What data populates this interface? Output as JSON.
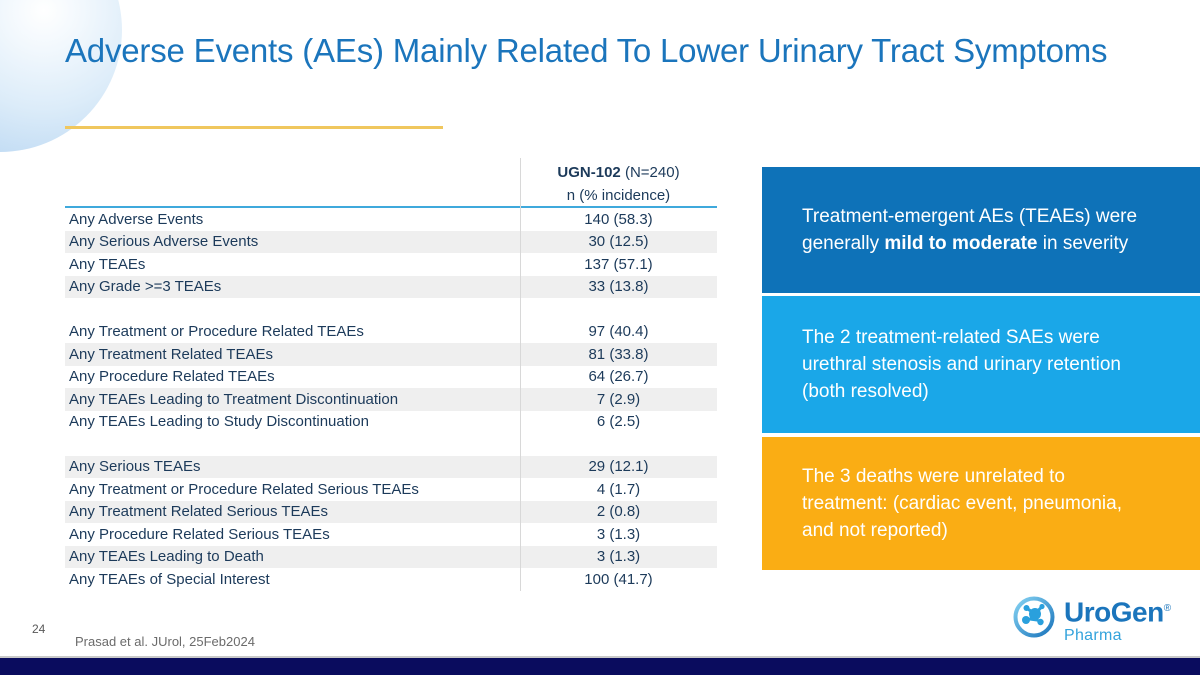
{
  "slide": {
    "title": "Adverse Events (AEs) Mainly Related To Lower Urinary Tract Symptoms",
    "page_number": "24",
    "citation": "Prasad et al. JUrol, 25Feb2024"
  },
  "table": {
    "header": {
      "drug": "UGN-102",
      "n": " (N=240)",
      "subheader": "n (% incidence)"
    },
    "rows": [
      {
        "label": "Any Adverse Events",
        "value": "140 (58.3)",
        "shaded": false
      },
      {
        "label": "Any Serious Adverse Events",
        "value": "30 (12.5)",
        "shaded": true
      },
      {
        "label": "Any TEAEs",
        "value": "137 (57.1)",
        "shaded": false
      },
      {
        "label": "Any Grade >=3 TEAEs",
        "value": "33 (13.8)",
        "shaded": true
      },
      {
        "spacer": true
      },
      {
        "label": "Any Treatment or Procedure Related TEAEs",
        "value": "97 (40.4)",
        "shaded": false
      },
      {
        "label": "Any Treatment Related TEAEs",
        "value": "81 (33.8)",
        "shaded": true
      },
      {
        "label": "Any Procedure Related TEAEs",
        "value": "64 (26.7)",
        "shaded": false
      },
      {
        "label": "Any TEAEs Leading to Treatment Discontinuation",
        "value": "7 (2.9)",
        "shaded": true
      },
      {
        "label": "Any TEAEs Leading to Study Discontinuation",
        "value": "6 (2.5)",
        "shaded": false
      },
      {
        "spacer": true
      },
      {
        "label": "Any Serious TEAEs",
        "value": "29 (12.1)",
        "shaded": true
      },
      {
        "label": "Any Treatment or Procedure Related Serious TEAEs",
        "value": "4 (1.7)",
        "shaded": false
      },
      {
        "label": "Any Treatment Related Serious TEAEs",
        "value": "2 (0.8)",
        "shaded": true
      },
      {
        "label": "Any Procedure Related Serious TEAEs",
        "value": "3 (1.3)",
        "shaded": false
      },
      {
        "label": "Any TEAEs Leading to Death",
        "value": "3 (1.3)",
        "shaded": true
      },
      {
        "label": "Any TEAEs of Special Interest",
        "value": "100 (41.7)",
        "shaded": false
      }
    ]
  },
  "callouts": [
    {
      "color": "#0e72b8",
      "parts": [
        {
          "t": "Treatment-emergent AEs (TEAEs) were generally "
        },
        {
          "t": "mild to moderate",
          "bold": true
        },
        {
          "t": " in severity"
        }
      ]
    },
    {
      "color": "#1aa7e8",
      "parts": [
        {
          "t": "The 2 treatment-related SAEs were urethral stenosis and urinary retention (both resolved)"
        }
      ]
    },
    {
      "color": "#faad14",
      "parts": [
        {
          "t": "The 3 deaths were unrelated to treatment: (cardiac event, pneumonia, and not reported)"
        }
      ]
    }
  ],
  "logo": {
    "name": "UroGen",
    "reg": "®",
    "sub": "Pharma"
  },
  "colors": {
    "title_blue": "#1b75bc",
    "underline_gold": "#f0c75e",
    "header_rule_blue": "#3fa9dc",
    "row_shade": "#efefef",
    "table_text": "#1c3a5a",
    "bottom_bar_navy": "#0a0c5e",
    "callout_dark_blue": "#0e72b8",
    "callout_light_blue": "#1aa7e8",
    "callout_orange": "#faad14"
  }
}
